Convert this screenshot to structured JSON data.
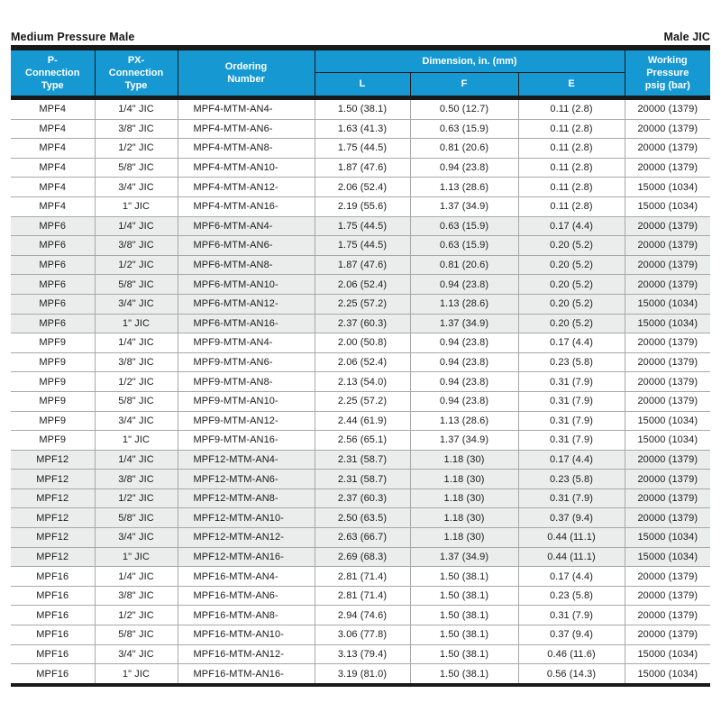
{
  "page": {
    "title_left": "Medium Pressure Male",
    "title_right": "Male JIC"
  },
  "colors": {
    "header_bg": "#1699D3",
    "header_text": "#FFFFFF",
    "shaded_row": "#EBECEC",
    "black_bar": "#1A1A1A",
    "grid_line": "#A8A8A8"
  },
  "table": {
    "headers": {
      "p_connection": "P-\nConnection\nType",
      "px_connection": "PX-\nConnection\nType",
      "ordering_number": "Ordering\nNumber",
      "dimension_group": "Dimension, in. (mm)",
      "dim_l": "L",
      "dim_f": "F",
      "dim_e": "E",
      "working_pressure": "Working\nPressure\npsig (bar)"
    },
    "shaded_groups": [
      "MPF6",
      "MPF12"
    ],
    "groups": [
      {
        "p_type": "MPF4",
        "rows": [
          {
            "px": "1/4\" JIC",
            "ordering": "MPF4-MTM-AN4-",
            "l": "1.50 (38.1)",
            "f": "0.50 (12.7)",
            "e": "0.11 (2.8)",
            "pressure": "20000 (1379)"
          },
          {
            "px": "3/8\" JIC",
            "ordering": "MPF4-MTM-AN6-",
            "l": "1.63 (41.3)",
            "f": "0.63 (15.9)",
            "e": "0.11 (2.8)",
            "pressure": "20000 (1379)"
          },
          {
            "px": "1/2\" JIC",
            "ordering": "MPF4-MTM-AN8-",
            "l": "1.75 (44.5)",
            "f": "0.81 (20.6)",
            "e": "0.11 (2.8)",
            "pressure": "20000 (1379)"
          },
          {
            "px": "5/8\" JIC",
            "ordering": "MPF4-MTM-AN10-",
            "l": "1.87 (47.6)",
            "f": "0.94 (23.8)",
            "e": "0.11 (2.8)",
            "pressure": "20000 (1379)"
          },
          {
            "px": "3/4\" JIC",
            "ordering": "MPF4-MTM-AN12-",
            "l": "2.06 (52.4)",
            "f": "1.13 (28.6)",
            "e": "0.11 (2.8)",
            "pressure": "15000 (1034)"
          },
          {
            "px": "1\" JIC",
            "ordering": "MPF4-MTM-AN16-",
            "l": "2.19 (55.6)",
            "f": "1.37 (34.9)",
            "e": "0.11 (2.8)",
            "pressure": "15000 (1034)"
          }
        ]
      },
      {
        "p_type": "MPF6",
        "rows": [
          {
            "px": "1/4\" JIC",
            "ordering": "MPF6-MTM-AN4-",
            "l": "1.75 (44.5)",
            "f": "0.63 (15.9)",
            "e": "0.17 (4.4)",
            "pressure": "20000 (1379)"
          },
          {
            "px": "3/8\" JIC",
            "ordering": "MPF6-MTM-AN6-",
            "l": "1.75 (44.5)",
            "f": "0.63 (15.9)",
            "e": "0.20 (5.2)",
            "pressure": "20000 (1379)"
          },
          {
            "px": "1/2\" JIC",
            "ordering": "MPF6-MTM-AN8-",
            "l": "1.87 (47.6)",
            "f": "0.81 (20.6)",
            "e": "0.20 (5.2)",
            "pressure": "20000 (1379)"
          },
          {
            "px": "5/8\" JIC",
            "ordering": "MPF6-MTM-AN10-",
            "l": "2.06 (52.4)",
            "f": "0.94 (23.8)",
            "e": "0.20 (5.2)",
            "pressure": "20000 (1379)"
          },
          {
            "px": "3/4\" JIC",
            "ordering": "MPF6-MTM-AN12-",
            "l": "2.25 (57.2)",
            "f": "1.13 (28.6)",
            "e": "0.20 (5.2)",
            "pressure": "15000 (1034)"
          },
          {
            "px": "1\" JIC",
            "ordering": "MPF6-MTM-AN16-",
            "l": "2.37 (60.3)",
            "f": "1.37 (34.9)",
            "e": "0.20 (5.2)",
            "pressure": "15000 (1034)"
          }
        ]
      },
      {
        "p_type": "MPF9",
        "rows": [
          {
            "px": "1/4\" JIC",
            "ordering": "MPF9-MTM-AN4-",
            "l": "2.00 (50.8)",
            "f": "0.94 (23.8)",
            "e": "0.17 (4.4)",
            "pressure": "20000 (1379)"
          },
          {
            "px": "3/8\" JIC",
            "ordering": "MPF9-MTM-AN6-",
            "l": "2.06 (52.4)",
            "f": "0.94 (23.8)",
            "e": "0.23 (5.8)",
            "pressure": "20000 (1379)"
          },
          {
            "px": "1/2\" JIC",
            "ordering": "MPF9-MTM-AN8-",
            "l": "2.13 (54.0)",
            "f": "0.94 (23.8)",
            "e": "0.31 (7.9)",
            "pressure": "20000 (1379)"
          },
          {
            "px": "5/8\" JIC",
            "ordering": "MPF9-MTM-AN10-",
            "l": "2.25 (57.2)",
            "f": "0.94 (23.8)",
            "e": "0.31 (7.9)",
            "pressure": "20000 (1379)"
          },
          {
            "px": "3/4\" JIC",
            "ordering": "MPF9-MTM-AN12-",
            "l": "2.44 (61.9)",
            "f": "1.13 (28.6)",
            "e": "0.31 (7.9)",
            "pressure": "15000 (1034)"
          },
          {
            "px": "1\" JIC",
            "ordering": "MPF9-MTM-AN16-",
            "l": "2.56 (65.1)",
            "f": "1.37 (34.9)",
            "e": "0.31 (7.9)",
            "pressure": "15000 (1034)"
          }
        ]
      },
      {
        "p_type": "MPF12",
        "rows": [
          {
            "px": "1/4\" JIC",
            "ordering": "MPF12-MTM-AN4-",
            "l": "2.31 (58.7)",
            "f": "1.18 (30)",
            "e": "0.17 (4.4)",
            "pressure": "20000 (1379)"
          },
          {
            "px": "3/8\" JIC",
            "ordering": "MPF12-MTM-AN6-",
            "l": "2.31 (58.7)",
            "f": "1.18 (30)",
            "e": "0.23 (5.8)",
            "pressure": "20000 (1379)"
          },
          {
            "px": "1/2\" JIC",
            "ordering": "MPF12-MTM-AN8-",
            "l": "2.37 (60.3)",
            "f": "1.18 (30)",
            "e": "0.31 (7.9)",
            "pressure": "20000 (1379)"
          },
          {
            "px": "5/8\" JIC",
            "ordering": "MPF12-MTM-AN10-",
            "l": "2.50 (63.5)",
            "f": "1.18 (30)",
            "e": "0.37 (9.4)",
            "pressure": "20000 (1379)"
          },
          {
            "px": "3/4\" JIC",
            "ordering": "MPF12-MTM-AN12-",
            "l": "2.63 (66.7)",
            "f": "1.18 (30)",
            "e": "0.44 (11.1)",
            "pressure": "15000 (1034)"
          },
          {
            "px": "1\" JIC",
            "ordering": "MPF12-MTM-AN16-",
            "l": "2.69 (68.3)",
            "f": "1.37 (34.9)",
            "e": "0.44 (11.1)",
            "pressure": "15000 (1034)"
          }
        ]
      },
      {
        "p_type": "MPF16",
        "rows": [
          {
            "px": "1/4\" JIC",
            "ordering": "MPF16-MTM-AN4-",
            "l": "2.81 (71.4)",
            "f": "1.50 (38.1)",
            "e": "0.17 (4.4)",
            "pressure": "20000 (1379)"
          },
          {
            "px": "3/8\" JIC",
            "ordering": "MPF16-MTM-AN6-",
            "l": "2.81 (71.4)",
            "f": "1.50 (38.1)",
            "e": "0.23 (5.8)",
            "pressure": "20000 (1379)"
          },
          {
            "px": "1/2\" JIC",
            "ordering": "MPF16-MTM-AN8-",
            "l": "2.94 (74.6)",
            "f": "1.50 (38.1)",
            "e": "0.31 (7.9)",
            "pressure": "20000 (1379)"
          },
          {
            "px": "5/8\" JIC",
            "ordering": "MPF16-MTM-AN10-",
            "l": "3.06 (77.8)",
            "f": "1.50 (38.1)",
            "e": "0.37 (9.4)",
            "pressure": "20000 (1379)"
          },
          {
            "px": "3/4\" JIC",
            "ordering": "MPF16-MTM-AN12-",
            "l": "3.13 (79.4)",
            "f": "1.50 (38.1)",
            "e": "0.46 (11.6)",
            "pressure": "15000 (1034)"
          },
          {
            "px": "1\" JIC",
            "ordering": "MPF16-MTM-AN16-",
            "l": "3.19 (81.0)",
            "f": "1.50 (38.1)",
            "e": "0.56 (14.3)",
            "pressure": "15000 (1034)"
          }
        ]
      }
    ]
  }
}
